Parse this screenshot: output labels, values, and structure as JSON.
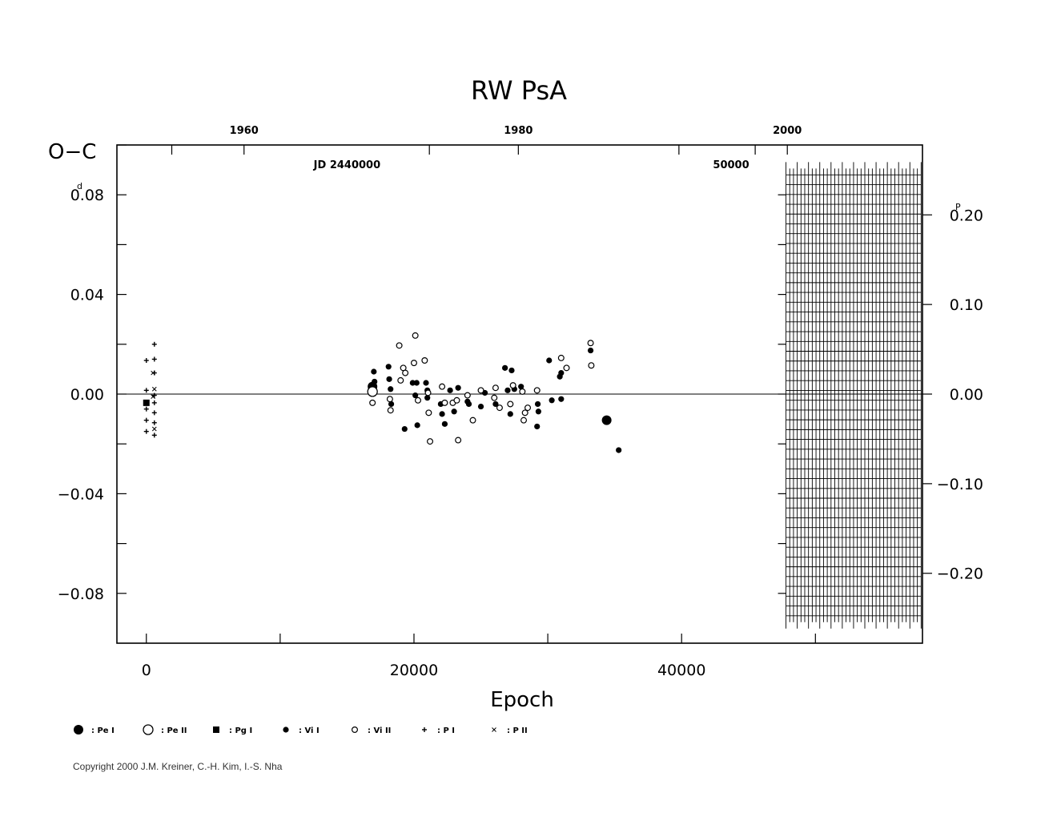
{
  "chart_data": {
    "type": "scatter",
    "title": "RW  PsA",
    "ylabel": "O−C",
    "xlabel": "Epoch",
    "xlim": [
      -2200,
      58000
    ],
    "ylim": [
      -0.1,
      0.1
    ],
    "y_ticks": [
      0.08,
      0.04,
      0.0,
      -0.04,
      -0.08
    ],
    "y_tick_labels": [
      "0.08",
      "0.04",
      "0.00",
      "−0.04",
      "−0.08"
    ],
    "y_unit_label": "d",
    "x_ticks": [
      0,
      20000,
      40000
    ],
    "x_tick_labels": [
      "0",
      "20000",
      "40000"
    ],
    "x_minor_ticks": [
      10000,
      30000,
      50000
    ],
    "phase_ticks": [
      0.2,
      0.1,
      0.0,
      -0.1,
      -0.2
    ],
    "phase_tick_labels": [
      "0.20",
      "0.10",
      "0.00",
      "−0.10",
      "−0.20"
    ],
    "phase_unit_label": "P",
    "phase_per_day": 2.78,
    "year_labels": [
      {
        "label": "1960",
        "epoch": 7300
      },
      {
        "label": "1980",
        "epoch": 27800
      },
      {
        "label": "2000",
        "epoch": 47900
      }
    ],
    "jd_labels": [
      {
        "label": "JD  2440000",
        "epoch": 15000
      },
      {
        "label": "50000",
        "epoch": 43700
      }
    ],
    "top_ticks_epoch": [
      1900,
      21150,
      39800,
      45500
    ],
    "grid": false,
    "legend_placement": "bottom-left",
    "legend": [
      {
        "symbol": "pe1",
        "label": ": Pe  I"
      },
      {
        "symbol": "pe2",
        "label": ": Pe  II"
      },
      {
        "symbol": "pg1",
        "label": ": Pg  I"
      },
      {
        "symbol": "vi1",
        "label": ": Vi  I"
      },
      {
        "symbol": "vi2",
        "label": ": Vi  II"
      },
      {
        "symbol": "p1",
        "label": ": P  I"
      },
      {
        "symbol": "p2",
        "label": ": P  II"
      }
    ],
    "series": [
      {
        "name": "Pe I",
        "symbol": "pe1",
        "points": [
          [
            16900,
            0.003
          ],
          [
            34400,
            -0.0105
          ]
        ]
      },
      {
        "name": "Pe II",
        "symbol": "pe2",
        "points": [
          [
            16900,
            0.001
          ]
        ]
      },
      {
        "name": "Pg I",
        "symbol": "pg1",
        "points": [
          [
            0,
            -0.0035
          ]
        ]
      },
      {
        "name": "Vi I",
        "symbol": "vi1",
        "points": [
          [
            17000,
            0.009
          ],
          [
            17050,
            0.005
          ],
          [
            18100,
            0.011
          ],
          [
            18150,
            0.006
          ],
          [
            18250,
            0.002
          ],
          [
            18300,
            -0.004
          ],
          [
            19300,
            -0.014
          ],
          [
            19900,
            0.0045
          ],
          [
            20200,
            0.0045
          ],
          [
            20100,
            -0.0005
          ],
          [
            20250,
            -0.0125
          ],
          [
            20900,
            0.0045
          ],
          [
            21000,
            0.0015
          ],
          [
            21000,
            -0.0015
          ],
          [
            22000,
            -0.004
          ],
          [
            22100,
            -0.008
          ],
          [
            22300,
            -0.012
          ],
          [
            22700,
            0.0015
          ],
          [
            23000,
            -0.007
          ],
          [
            23300,
            0.0025
          ],
          [
            24000,
            -0.003
          ],
          [
            24100,
            -0.004
          ],
          [
            25000,
            -0.005
          ],
          [
            25300,
            0.0005
          ],
          [
            26100,
            -0.004
          ],
          [
            26800,
            0.0105
          ],
          [
            27000,
            0.0015
          ],
          [
            27200,
            -0.008
          ],
          [
            27300,
            0.0095
          ],
          [
            27500,
            0.002
          ],
          [
            28000,
            0.003
          ],
          [
            29200,
            -0.013
          ],
          [
            29250,
            -0.004
          ],
          [
            29300,
            -0.007
          ],
          [
            30100,
            0.0135
          ],
          [
            30300,
            -0.0025
          ],
          [
            30900,
            0.007
          ],
          [
            31000,
            0.0085
          ],
          [
            31000,
            -0.002
          ],
          [
            33200,
            0.0175
          ],
          [
            35300,
            -0.0225
          ]
        ]
      },
      {
        "name": "Vi II",
        "symbol": "vi2",
        "points": [
          [
            16900,
            -0.0035
          ],
          [
            18200,
            -0.002
          ],
          [
            18250,
            -0.0065
          ],
          [
            18900,
            0.0195
          ],
          [
            19000,
            0.0055
          ],
          [
            19200,
            0.0105
          ],
          [
            19350,
            0.0085
          ],
          [
            20000,
            0.0125
          ],
          [
            20100,
            0.0235
          ],
          [
            20300,
            -0.0025
          ],
          [
            20800,
            0.0135
          ],
          [
            21050,
            0.0005
          ],
          [
            21100,
            -0.0075
          ],
          [
            21200,
            -0.019
          ],
          [
            22100,
            0.003
          ],
          [
            22300,
            -0.0035
          ],
          [
            22900,
            -0.0035
          ],
          [
            23200,
            -0.0025
          ],
          [
            23300,
            -0.0185
          ],
          [
            24000,
            -0.0005
          ],
          [
            24400,
            -0.0105
          ],
          [
            25000,
            0.0015
          ],
          [
            26000,
            -0.0015
          ],
          [
            26100,
            0.0025
          ],
          [
            26400,
            -0.0055
          ],
          [
            27200,
            -0.004
          ],
          [
            27400,
            0.0035
          ],
          [
            28100,
            0.001
          ],
          [
            28200,
            -0.0105
          ],
          [
            28300,
            -0.0075
          ],
          [
            28500,
            -0.0055
          ],
          [
            29200,
            0.0015
          ],
          [
            31000,
            0.0145
          ],
          [
            31400,
            0.0105
          ],
          [
            33200,
            0.0205
          ],
          [
            33250,
            0.0115
          ]
        ]
      },
      {
        "name": "P I",
        "symbol": "p1",
        "points": [
          [
            0,
            0.0135
          ],
          [
            0,
            0.0015
          ],
          [
            0,
            -0.006
          ],
          [
            0,
            -0.0105
          ],
          [
            0,
            -0.015
          ],
          [
            600,
            0.02
          ],
          [
            600,
            0.014
          ],
          [
            600,
            0.0085
          ],
          [
            600,
            -0.0005
          ],
          [
            600,
            -0.0035
          ],
          [
            600,
            -0.0075
          ],
          [
            600,
            -0.0115
          ],
          [
            600,
            -0.0165
          ]
        ]
      },
      {
        "name": "P II",
        "symbol": "p2",
        "points": [
          [
            500,
            0.0085
          ],
          [
            600,
            0.002
          ],
          [
            500,
            -0.001
          ],
          [
            600,
            -0.014
          ]
        ]
      }
    ],
    "reference_line_y": 0.0,
    "grid_block": {
      "x_start": 47800,
      "x_end": 57900,
      "y_min": -0.089,
      "y_max": 0.088,
      "columns": 36,
      "rows": 45
    }
  },
  "copyright": "Copyright 2000 J.M. Kreiner, C.-H. Kim, I.-S. Nha"
}
